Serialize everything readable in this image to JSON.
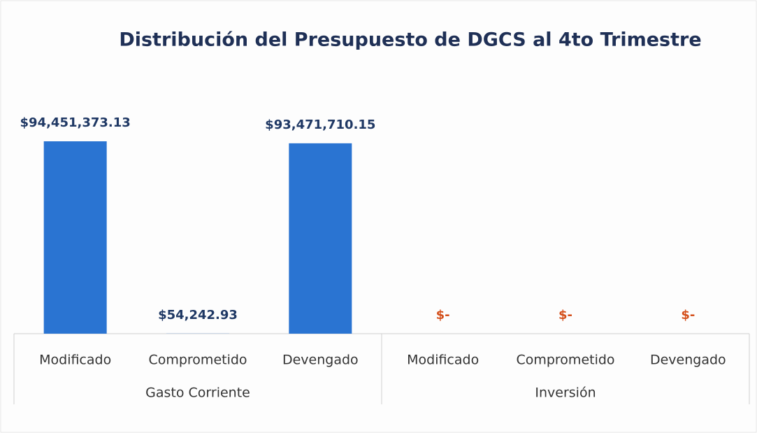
{
  "chart_data": {
    "type": "bar",
    "title": "Distribución del Presupuesto de DGCS al 4to Trimestre",
    "categories": [
      "Modificado",
      "Comprometido",
      "Devengado",
      "Modificado",
      "Comprometido",
      "Devengado"
    ],
    "group_labels": [
      "Gasto Corriente",
      "Inversión"
    ],
    "values": [
      94451373.13,
      54242.93,
      93471710.15,
      0,
      0,
      0
    ],
    "value_labels": [
      "$94,451,373.13",
      "$54,242.93",
      "$93,471,710.15",
      "$-",
      "$-",
      "$-"
    ],
    "color": "#2a74d2",
    "label_colors": [
      "#1f3864",
      "#1f3864",
      "#1f3864",
      "#d4501c",
      "#d4501c",
      "#d4501c"
    ],
    "grid": false
  }
}
